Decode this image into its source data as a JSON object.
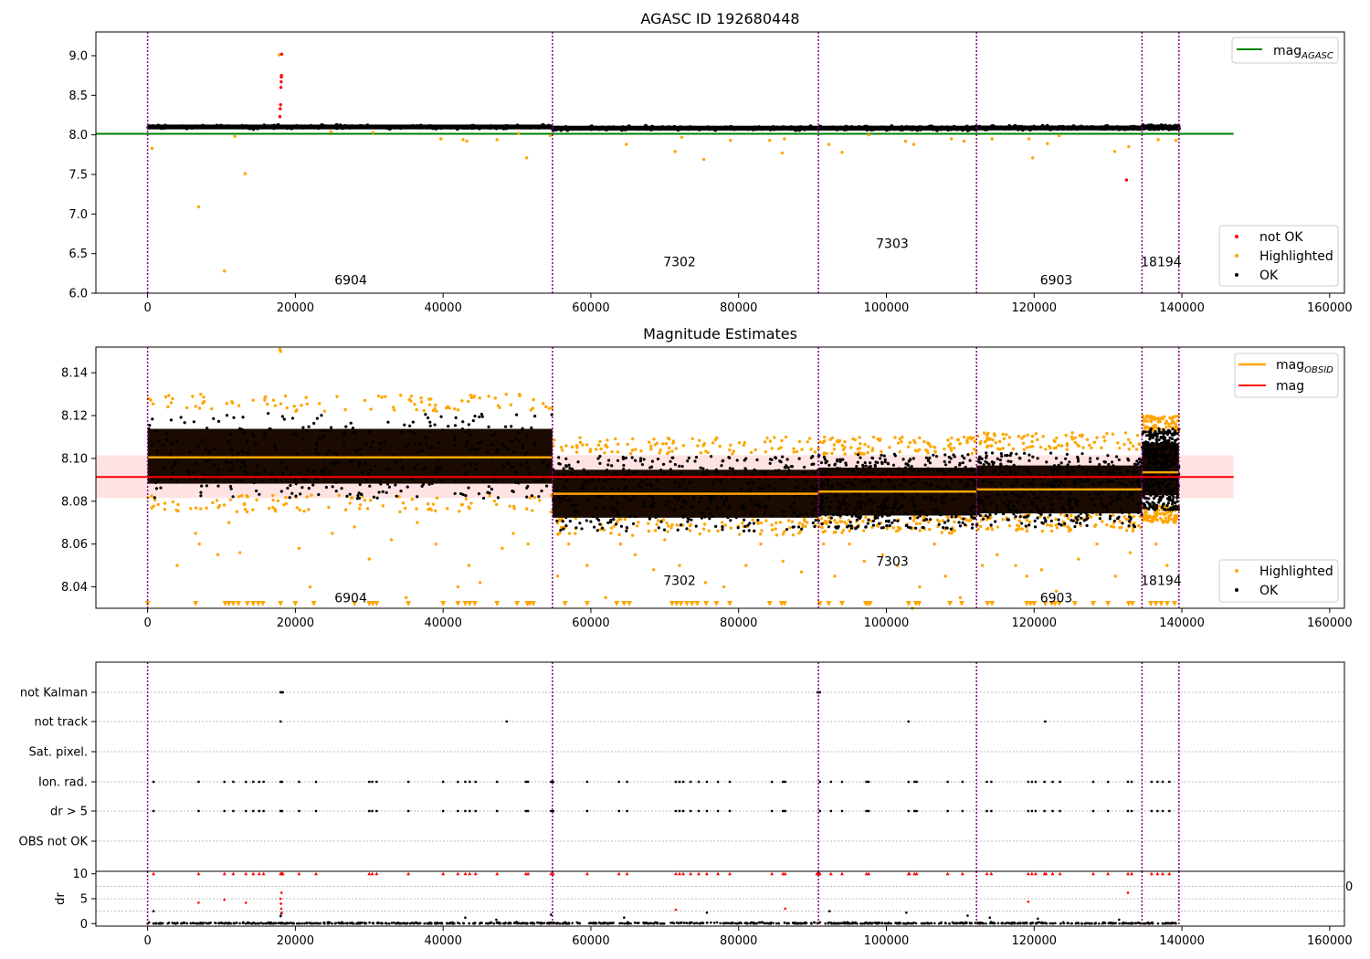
{
  "chart_data": [
    {
      "type": "scatter",
      "title": "AGASC ID 192680448",
      "xlim": [
        -7000,
        162000
      ],
      "ylim": [
        6.0,
        9.3
      ],
      "xticks": [
        0,
        20000,
        40000,
        60000,
        80000,
        100000,
        120000,
        140000,
        160000
      ],
      "xtick_labels": [
        "0",
        "20000",
        "40000",
        "60000",
        "80000",
        "100000",
        "120000",
        "140000",
        "160000"
      ],
      "yticks": [
        6.0,
        6.5,
        7.0,
        7.5,
        8.0,
        8.5,
        9.0
      ],
      "ytick_labels": [
        "6.0",
        "6.5",
        "7.0",
        "7.5",
        "8.0",
        "8.5",
        "9.0"
      ],
      "obsid_boundaries": [
        0,
        54800,
        90800,
        112200,
        134600,
        139600
      ],
      "obsid_labels": [
        {
          "text": "6904",
          "x": 27500,
          "y": 6.17
        },
        {
          "text": "7302",
          "x": 72000,
          "y": 6.4
        },
        {
          "text": "7303",
          "x": 100800,
          "y": 6.63
        },
        {
          "text": "6903",
          "x": 123000,
          "y": 6.17
        },
        {
          "text": "18194",
          "x": 137200,
          "y": 6.4
        }
      ],
      "mag_agasc": {
        "value": 8.014,
        "x_range": [
          -7000,
          147000
        ],
        "color": "#008000",
        "label": "mag",
        "label_sub": "AGASC"
      },
      "ok_bands": [
        {
          "x0": 0,
          "x1": 54800,
          "y": 8.1,
          "spread": 0.015
        },
        {
          "x0": 54800,
          "x1": 90800,
          "y": 8.085,
          "spread": 0.012
        },
        {
          "x0": 90800,
          "x1": 112200,
          "y": 8.085,
          "spread": 0.012
        },
        {
          "x0": 112200,
          "x1": 134600,
          "y": 8.087,
          "spread": 0.012
        },
        {
          "x0": 134600,
          "x1": 139600,
          "y": 8.095,
          "spread": 0.015
        }
      ],
      "highlighted_points": [
        [
          600,
          7.83
        ],
        [
          6900,
          7.09
        ],
        [
          10400,
          6.28
        ],
        [
          13200,
          7.51
        ],
        [
          11800,
          7.98
        ],
        [
          17800,
          9.01
        ],
        [
          24800,
          8.04
        ],
        [
          30500,
          8.03
        ],
        [
          39700,
          7.95
        ],
        [
          42700,
          7.94
        ],
        [
          43200,
          7.92
        ],
        [
          47300,
          7.94
        ],
        [
          51300,
          7.71
        ],
        [
          50200,
          8.02
        ],
        [
          54500,
          7.99
        ],
        [
          64800,
          7.88
        ],
        [
          71400,
          7.79
        ],
        [
          72300,
          7.97
        ],
        [
          75300,
          7.69
        ],
        [
          78900,
          7.93
        ],
        [
          84200,
          7.93
        ],
        [
          85900,
          7.77
        ],
        [
          86200,
          7.95
        ],
        [
          92200,
          7.88
        ],
        [
          94000,
          7.78
        ],
        [
          97600,
          8.0
        ],
        [
          102600,
          7.92
        ],
        [
          103700,
          7.88
        ],
        [
          108800,
          7.95
        ],
        [
          110500,
          7.92
        ],
        [
          114300,
          7.95
        ],
        [
          119300,
          7.95
        ],
        [
          119800,
          7.71
        ],
        [
          121800,
          7.89
        ],
        [
          123400,
          7.99
        ],
        [
          130900,
          7.79
        ],
        [
          132800,
          7.85
        ],
        [
          136800,
          7.94
        ],
        [
          139200,
          7.93
        ]
      ],
      "not_ok_points": [
        [
          17900,
          8.23
        ],
        [
          17950,
          8.33
        ],
        [
          18000,
          8.38
        ],
        [
          18050,
          8.6
        ],
        [
          18080,
          8.67
        ],
        [
          18100,
          8.73
        ],
        [
          18120,
          8.75
        ],
        [
          18150,
          9.02
        ],
        [
          132500,
          7.43
        ]
      ],
      "legend_upper": [
        "mag_AGASC"
      ],
      "legend_lower": [
        "not OK",
        "Highlighted",
        "OK"
      ],
      "colors": {
        "ok": "#000000",
        "highlighted": "#ffa500",
        "not_ok": "#ff0000",
        "boundary": "#800080"
      }
    },
    {
      "type": "scatter",
      "title": "Magnitude Estimates",
      "xlim": [
        -7000,
        162000
      ],
      "ylim": [
        8.03,
        8.152
      ],
      "xticks": [
        0,
        20000,
        40000,
        60000,
        80000,
        100000,
        120000,
        140000,
        160000
      ],
      "xtick_labels": [
        "0",
        "20000",
        "40000",
        "60000",
        "80000",
        "100000",
        "120000",
        "140000",
        "160000"
      ],
      "yticks": [
        8.04,
        8.06,
        8.08,
        8.1,
        8.12,
        8.14
      ],
      "ytick_labels": [
        "8.04",
        "8.06",
        "8.08",
        "8.10",
        "8.12",
        "8.14"
      ],
      "obsid_labels": [
        {
          "text": "6904",
          "x": 27500,
          "y": 8.035
        },
        {
          "text": "7302",
          "x": 72000,
          "y": 8.043
        },
        {
          "text": "7303",
          "x": 100800,
          "y": 8.052
        },
        {
          "text": "6903",
          "x": 123000,
          "y": 8.035
        },
        {
          "text": "18194",
          "x": 137200,
          "y": 8.043
        }
      ],
      "mag": {
        "value": 8.0913,
        "band": [
          8.0815,
          8.1015
        ],
        "x_range": [
          -7000,
          147000
        ],
        "color": "#ff0000",
        "label": "mag"
      },
      "mag_obsid": [
        {
          "x0": 0,
          "x1": 54800,
          "y": 8.1005
        },
        {
          "x0": 54800,
          "x1": 90800,
          "y": 8.0835
        },
        {
          "x0": 90800,
          "x1": 112200,
          "y": 8.0845
        },
        {
          "x0": 112200,
          "x1": 134600,
          "y": 8.0855
        },
        {
          "x0": 134600,
          "x1": 139600,
          "y": 8.0935
        }
      ],
      "mag_obsid_label": "mag",
      "mag_obsid_sub": "OBSID",
      "ok_bands": [
        {
          "x0": 0,
          "x1": 54800,
          "lo": 8.081,
          "hi": 8.121
        },
        {
          "x0": 54800,
          "x1": 90800,
          "lo": 8.066,
          "hi": 8.101
        },
        {
          "x0": 90800,
          "x1": 112200,
          "lo": 8.067,
          "hi": 8.102
        },
        {
          "x0": 112200,
          "x1": 134600,
          "lo": 8.068,
          "hi": 8.103
        },
        {
          "x0": 134600,
          "x1": 139600,
          "lo": 8.076,
          "hi": 8.114
        }
      ],
      "highlighted_band": [
        {
          "x0": 0,
          "x1": 54800,
          "lo": 8.075,
          "hi": 8.13
        },
        {
          "x0": 54800,
          "x1": 90800,
          "lo": 8.064,
          "hi": 8.11
        },
        {
          "x0": 90800,
          "x1": 112200,
          "lo": 8.065,
          "hi": 8.11
        },
        {
          "x0": 112200,
          "x1": 134600,
          "lo": 8.066,
          "hi": 8.112
        },
        {
          "x0": 134600,
          "x1": 139600,
          "lo": 8.07,
          "hi": 8.12
        }
      ],
      "highlighted_points": [
        [
          17900,
          8.151
        ],
        [
          18000,
          8.15
        ],
        [
          4000,
          8.05
        ],
        [
          6500,
          8.065
        ],
        [
          7000,
          8.06
        ],
        [
          9500,
          8.055
        ],
        [
          11000,
          8.07
        ],
        [
          12500,
          8.056
        ],
        [
          20500,
          8.058
        ],
        [
          22000,
          8.04
        ],
        [
          25000,
          8.065
        ],
        [
          28000,
          8.068
        ],
        [
          30000,
          8.053
        ],
        [
          33000,
          8.062
        ],
        [
          35000,
          8.035
        ],
        [
          36500,
          8.07
        ],
        [
          39000,
          8.06
        ],
        [
          42000,
          8.04
        ],
        [
          43500,
          8.05
        ],
        [
          45000,
          8.042
        ],
        [
          48000,
          8.058
        ],
        [
          49500,
          8.065
        ],
        [
          51500,
          8.06
        ],
        [
          55500,
          8.045
        ],
        [
          57000,
          8.06
        ],
        [
          59500,
          8.05
        ],
        [
          62000,
          8.035
        ],
        [
          64000,
          8.06
        ],
        [
          66000,
          8.055
        ],
        [
          68500,
          8.048
        ],
        [
          70000,
          8.062
        ],
        [
          72000,
          8.05
        ],
        [
          75500,
          8.042
        ],
        [
          78000,
          8.04
        ],
        [
          81000,
          8.05
        ],
        [
          83000,
          8.06
        ],
        [
          86000,
          8.052
        ],
        [
          88500,
          8.047
        ],
        [
          91500,
          8.06
        ],
        [
          93000,
          8.045
        ],
        [
          95000,
          8.06
        ],
        [
          97000,
          8.052
        ],
        [
          99500,
          8.055
        ],
        [
          101500,
          8.05
        ],
        [
          103500,
          8.03
        ],
        [
          104500,
          8.04
        ],
        [
          106500,
          8.06
        ],
        [
          108000,
          8.045
        ],
        [
          110000,
          8.035
        ],
        [
          113000,
          8.05
        ],
        [
          115000,
          8.055
        ],
        [
          117500,
          8.05
        ],
        [
          119000,
          8.045
        ],
        [
          121000,
          8.048
        ],
        [
          123000,
          8.038
        ],
        [
          126000,
          8.053
        ],
        [
          128500,
          8.06
        ],
        [
          131000,
          8.045
        ],
        [
          133000,
          8.056
        ],
        [
          136500,
          8.06
        ],
        [
          138000,
          8.05
        ]
      ],
      "lower_limit_markers": [
        0,
        6500,
        10500,
        11000,
        11600,
        12300,
        13500,
        14300,
        15000,
        15600,
        18000,
        20000,
        22500,
        28000,
        30000,
        30500,
        31000,
        35300,
        40000,
        42000,
        43000,
        43600,
        44300,
        47300,
        50000,
        51400,
        51700,
        52200,
        56500,
        59500,
        63500,
        64500,
        65200,
        71000,
        71600,
        72200,
        73000,
        73700,
        74400,
        75600,
        77000,
        78800,
        84200,
        85800,
        86200,
        91000,
        92200,
        94000,
        97200,
        97500,
        97800,
        103000,
        104000,
        104400,
        108600,
        110200,
        113700,
        114300,
        119000,
        119500,
        120000,
        121500,
        122400,
        122800,
        123400,
        125500,
        128000,
        130000,
        132800,
        133300,
        135800,
        136500,
        137200,
        138000,
        139000
      ],
      "legend_upper": [
        "mag_OBSID",
        "mag"
      ],
      "legend_lower": [
        "Highlighted",
        "OK"
      ],
      "colors": {
        "ok": "#000000",
        "highlighted": "#ffa500",
        "mag": "#ff0000",
        "mag_obsid": "#ffa500",
        "band": "#ffc0c0"
      }
    },
    {
      "type": "scatter",
      "title": "",
      "xlim": [
        -7000,
        162000
      ],
      "xticks": [
        0,
        20000,
        40000,
        60000,
        80000,
        100000,
        120000,
        140000,
        160000
      ],
      "xtick_labels": [
        "0",
        "20000",
        "40000",
        "60000",
        "80000",
        "100000",
        "120000",
        "140000",
        "160000"
      ],
      "flag_rows": [
        "not Kalman",
        "not track",
        "Sat. pixel.",
        "Ion. rad.",
        "dr > 5",
        "OBS not OK"
      ],
      "flag_points": {
        "not Kalman": [
          18000,
          18100,
          18200,
          18300,
          90700,
          90800,
          90900,
          91000
        ],
        "not track": [
          18000,
          48600,
          103000,
          121500
        ],
        "Sat. pixel.": [],
        "Ion. rad.": [
          800,
          6900,
          10400,
          11600,
          13300,
          14300,
          15100,
          15700,
          18000,
          18200,
          20500,
          22800,
          30000,
          30400,
          31000,
          35300,
          40000,
          42000,
          43000,
          43600,
          44400,
          47300,
          51200,
          51500,
          54600,
          54900,
          59500,
          63800,
          64900,
          71500,
          72000,
          72500,
          73500,
          74600,
          75700,
          77200,
          78800,
          84500,
          86000,
          86300,
          91000,
          92500,
          94000,
          97300,
          97600,
          103000,
          103800,
          104100,
          108300,
          110300,
          113600,
          114200,
          119200,
          119700,
          120200,
          121400,
          122500,
          123500,
          128000,
          130000,
          132700,
          133200,
          135900,
          136700,
          137400,
          138300
        ],
        "dr > 5": [
          800,
          6900,
          10400,
          11600,
          13300,
          14300,
          15100,
          15700,
          18000,
          18200,
          20500,
          22800,
          30000,
          30400,
          31000,
          35300,
          40000,
          42000,
          43000,
          43600,
          44400,
          47300,
          51200,
          51500,
          54600,
          54900,
          59500,
          63800,
          64900,
          71500,
          72000,
          72500,
          73500,
          74600,
          75700,
          77200,
          78800,
          84500,
          86000,
          86300,
          91000,
          92500,
          94000,
          97300,
          97600,
          103000,
          103800,
          104100,
          108300,
          110300,
          113600,
          114200,
          119200,
          119700,
          120200,
          121400,
          122500,
          123500,
          128000,
          130000,
          132700,
          133200,
          135900,
          136700,
          137400,
          138300
        ],
        "OBS not OK": []
      },
      "dr_panel": {
        "ylabel": "dr",
        "yticks": [
          0,
          5,
          10
        ],
        "ytick_labels": [
          "0",
          "5",
          "10"
        ],
        "ylim": [
          -0.5,
          10.5
        ],
        "clipped_points_red": [
          800,
          6900,
          10400,
          11600,
          13300,
          14300,
          15100,
          15700,
          18000,
          18100,
          18200,
          18300,
          20500,
          22800,
          30000,
          30400,
          31000,
          35300,
          40000,
          42000,
          43000,
          43600,
          44400,
          47300,
          51200,
          51500,
          54600,
          54900,
          59500,
          63800,
          64900,
          71500,
          72000,
          72500,
          73500,
          74600,
          75700,
          77200,
          78800,
          84500,
          86000,
          86300,
          90600,
          90700,
          90800,
          90900,
          91000,
          92500,
          94000,
          97300,
          97600,
          103000,
          103100,
          103800,
          104100,
          108300,
          110300,
          113600,
          114200,
          119200,
          119700,
          120200,
          121400,
          121600,
          122500,
          123500,
          128000,
          130000,
          132700,
          133200,
          135900,
          136700,
          137400,
          138300
        ],
        "red_points": [
          [
            6900,
            4.2
          ],
          [
            10400,
            4.8
          ],
          [
            13300,
            4.2
          ],
          [
            18000,
            5.0
          ],
          [
            18050,
            4.0
          ],
          [
            18100,
            3.0
          ],
          [
            18120,
            6.2
          ],
          [
            18150,
            2.2
          ],
          [
            71500,
            2.8
          ],
          [
            86300,
            3.0
          ],
          [
            119200,
            4.4
          ],
          [
            132700,
            6.2
          ]
        ],
        "black_points": [
          [
            800,
            2.5
          ],
          [
            18000,
            1.5
          ],
          [
            18100,
            2.0
          ],
          [
            43000,
            1.2
          ],
          [
            47200,
            0.8
          ],
          [
            54600,
            1.8
          ],
          [
            64500,
            1.2
          ],
          [
            75700,
            2.2
          ],
          [
            92300,
            2.5
          ],
          [
            102700,
            2.2
          ],
          [
            111000,
            1.6
          ],
          [
            114000,
            1.2
          ],
          [
            120500,
            1.0
          ],
          [
            131500,
            0.8
          ]
        ],
        "top_truncated_label": "0"
      },
      "colors": {
        "ok": "#000000",
        "not_ok": "#ff0000",
        "grid": "#bbbbbb"
      }
    }
  ]
}
